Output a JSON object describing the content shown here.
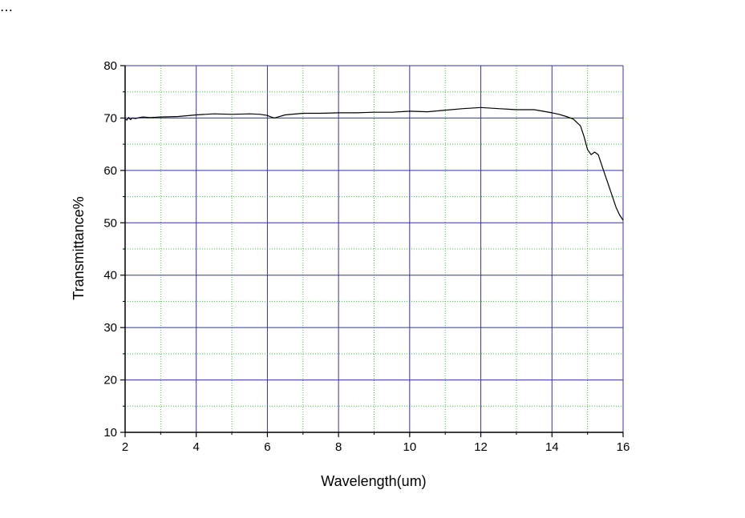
{
  "header": {
    "caption_fragment": "…"
  },
  "chart_data": {
    "type": "line",
    "title": "",
    "xlabel": "Wavelength(um)",
    "ylabel": "Transmittance%",
    "xlim": [
      2,
      16
    ],
    "ylim": [
      10,
      80
    ],
    "x_major_ticks": [
      2,
      4,
      6,
      8,
      10,
      12,
      14,
      16
    ],
    "y_major_ticks": [
      10,
      20,
      30,
      40,
      50,
      60,
      70,
      80
    ],
    "x_tick_labels": [
      "2",
      "4",
      "6",
      "8",
      "10",
      "12",
      "14",
      "16"
    ],
    "y_tick_labels": [
      "10",
      "20",
      "30",
      "40",
      "50",
      "60",
      "70",
      "80"
    ],
    "x_minor_step": 1,
    "y_minor_step": 5,
    "grid": true,
    "legend": "none",
    "colors": {
      "major_grid": "#3333aa",
      "minor_grid": "#33cc33",
      "line": "#000000",
      "axis": "#000000"
    },
    "series": [
      {
        "x": [
          2.0,
          2.05,
          2.1,
          2.15,
          2.2,
          2.3,
          2.4,
          2.5,
          2.7,
          3.0,
          3.5,
          4.0,
          4.5,
          5.0,
          5.5,
          5.8,
          6.0,
          6.1,
          6.2,
          6.3,
          6.5,
          7.0,
          7.5,
          8.0,
          8.5,
          9.0,
          9.5,
          10.0,
          10.5,
          11.0,
          11.5,
          12.0,
          12.5,
          13.0,
          13.5,
          14.0,
          14.2,
          14.4,
          14.6,
          14.8,
          14.9,
          15.0,
          15.1,
          15.2,
          15.3,
          15.4,
          15.5,
          15.6,
          15.7,
          15.8,
          15.9,
          16.0
        ],
        "y": [
          69.8,
          69.6,
          70.1,
          69.7,
          70.0,
          69.9,
          70.1,
          70.2,
          70.1,
          70.2,
          70.3,
          70.6,
          70.8,
          70.7,
          70.8,
          70.7,
          70.5,
          70.2,
          70.0,
          70.2,
          70.6,
          70.9,
          70.9,
          71.0,
          71.0,
          71.1,
          71.1,
          71.3,
          71.2,
          71.5,
          71.8,
          72.0,
          71.8,
          71.6,
          71.6,
          71.0,
          70.7,
          70.3,
          69.8,
          68.5,
          66.5,
          64.0,
          63.0,
          63.5,
          63.0,
          61.0,
          59.0,
          57.0,
          55.0,
          53.0,
          51.5,
          50.5
        ]
      }
    ]
  }
}
